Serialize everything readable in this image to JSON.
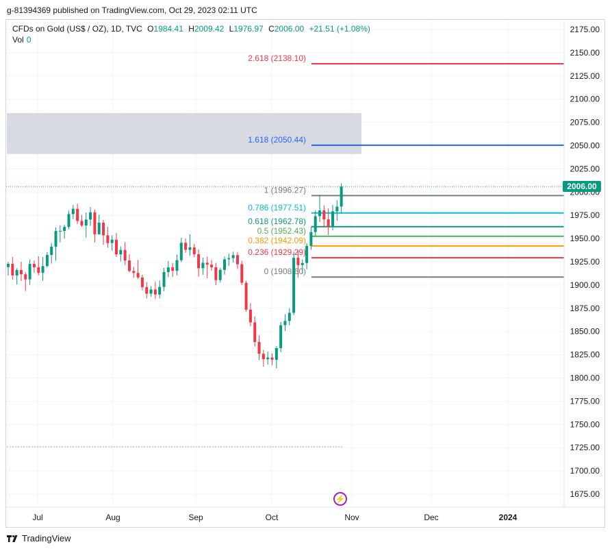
{
  "header": {
    "text": "g-81394369 published on TradingView.com, Oct 29, 2023 02:11 UTC"
  },
  "legend": {
    "symbol": "CFDs on Gold (US$ / OZ), 1D, TVC",
    "o_label": "O",
    "o_value": "1984.41",
    "h_label": "H",
    "h_value": "2009.42",
    "l_label": "L",
    "l_value": "1976.97",
    "c_label": "C",
    "c_value": "2006.00",
    "change": "+21.51 (+1.08%)",
    "vol_label": "Vol",
    "vol_value": "0"
  },
  "footer": {
    "brand": "TradingView"
  },
  "last_price": "2006.00",
  "colors": {
    "up": "#089981",
    "down": "#f23645",
    "grid": "#f0f3fa",
    "zone": "#d1d4dc"
  },
  "chart_data": {
    "type": "candlestick",
    "y_ticks": [
      "1675.00",
      "1700.00",
      "1725.00",
      "1750.00",
      "1775.00",
      "1800.00",
      "1825.00",
      "1850.00",
      "1875.00",
      "1900.00",
      "1925.00",
      "1950.00",
      "1975.00",
      "2000.00",
      "2025.00",
      "2050.00",
      "2075.00",
      "2100.00",
      "2125.00",
      "2150.00",
      "2175.00"
    ],
    "x_ticks": [
      "Jul",
      "Aug",
      "Sep",
      "Oct",
      "Nov",
      "Dec",
      "2024"
    ],
    "ylim": [
      1660,
      2190
    ],
    "fib_levels": [
      {
        "label": "2.618 (2138.10)",
        "value": 2138.1,
        "color": "#f23645"
      },
      {
        "label": "1.618 (2050.44)",
        "value": 2050.44,
        "color": "#2962ff"
      },
      {
        "label": "1 (1996.27)",
        "value": 1996.27,
        "color": "#787b86"
      },
      {
        "label": "0.786 (1977.51)",
        "value": 1977.51,
        "color": "#00bcd4"
      },
      {
        "label": "0.618 (1962.78)",
        "value": 1962.78,
        "color": "#089981"
      },
      {
        "label": "0.5 (1952.43)",
        "value": 1952.43,
        "color": "#4caf50"
      },
      {
        "label": "0.382 (1942.09)",
        "value": 1942.09,
        "color": "#ff9800"
      },
      {
        "label": "0.236 (1929.29)",
        "value": 1929.29,
        "color": "#f23645"
      },
      {
        "label": "0 (1908.60)",
        "value": 1908.6,
        "color": "#787b86"
      }
    ],
    "zone": {
      "top": 2085,
      "bottom": 2041
    },
    "candles": [
      [
        1919.3,
        1925.0,
        1910.1,
        1922.8
      ],
      [
        1922.8,
        1930.2,
        1905.6,
        1910.3
      ],
      [
        1910.3,
        1918.1,
        1900.6,
        1916.1
      ],
      [
        1916.1,
        1925.0,
        1904.2,
        1911.6
      ],
      [
        1911.6,
        1913.8,
        1893.6,
        1906.1
      ],
      [
        1906.1,
        1927.5,
        1900.2,
        1922.7
      ],
      [
        1922.7,
        1926.4,
        1913.1,
        1919.1
      ],
      [
        1919.1,
        1930.9,
        1910.4,
        1913.1
      ],
      [
        1913.1,
        1930.2,
        1904.7,
        1920.4
      ],
      [
        1920.4,
        1935.5,
        1919.1,
        1932.4
      ],
      [
        1932.4,
        1945.2,
        1923.1,
        1941.3
      ],
      [
        1941.3,
        1962.0,
        1926.0,
        1958.1
      ],
      [
        1958.1,
        1964.3,
        1945.9,
        1958.2
      ],
      [
        1958.2,
        1965.0,
        1950.1,
        1962.5
      ],
      [
        1962.5,
        1980.2,
        1960.2,
        1976.3
      ],
      [
        1976.3,
        1986.0,
        1970.8,
        1982.0
      ],
      [
        1982.0,
        1987.4,
        1965.5,
        1969.0
      ],
      [
        1969.0,
        1975.5,
        1962.6,
        1964.1
      ],
      [
        1964.1,
        1978.0,
        1950.9,
        1970.4
      ],
      [
        1970.4,
        1984.1,
        1963.6,
        1978.3
      ],
      [
        1978.3,
        1981.2,
        1945.7,
        1954.6
      ],
      [
        1954.6,
        1975.8,
        1954.1,
        1967.1
      ],
      [
        1967.1,
        1970.0,
        1943.3,
        1953.5
      ],
      [
        1953.5,
        1962.7,
        1940.3,
        1945.2
      ],
      [
        1945.2,
        1953.5,
        1937.0,
        1948.8
      ],
      [
        1948.8,
        1956.0,
        1930.1,
        1933.0
      ],
      [
        1933.0,
        1941.6,
        1925.5,
        1937.7
      ],
      [
        1937.7,
        1946.2,
        1921.6,
        1926.4
      ],
      [
        1926.4,
        1933.0,
        1913.6,
        1915.1
      ],
      [
        1915.1,
        1919.6,
        1907.9,
        1913.0
      ],
      [
        1913.0,
        1927.0,
        1906.3,
        1908.2
      ],
      [
        1908.2,
        1911.0,
        1894.3,
        1897.7
      ],
      [
        1897.7,
        1903.2,
        1885.7,
        1890.7
      ],
      [
        1890.7,
        1898.8,
        1887.3,
        1895.2
      ],
      [
        1895.2,
        1903.4,
        1884.9,
        1889.8
      ],
      [
        1889.8,
        1904.9,
        1885.7,
        1898.0
      ],
      [
        1898.0,
        1918.4,
        1893.4,
        1913.9
      ],
      [
        1913.9,
        1925.8,
        1908.4,
        1919.0
      ],
      [
        1919.0,
        1923.8,
        1908.6,
        1915.3
      ],
      [
        1915.3,
        1932.8,
        1910.5,
        1926.7
      ],
      [
        1926.7,
        1950.8,
        1924.6,
        1945.5
      ],
      [
        1945.5,
        1950.2,
        1934.7,
        1937.9
      ],
      [
        1937.9,
        1954.4,
        1931.7,
        1940.5
      ],
      [
        1940.5,
        1944.3,
        1930.0,
        1933.2
      ],
      [
        1933.2,
        1938.2,
        1909.1,
        1918.1
      ],
      [
        1918.1,
        1929.6,
        1911.0,
        1924.0
      ],
      [
        1924.0,
        1930.6,
        1907.4,
        1921.9
      ],
      [
        1921.9,
        1926.9,
        1915.3,
        1919.1
      ],
      [
        1919.1,
        1923.8,
        1899.9,
        1905.3
      ],
      [
        1905.3,
        1918.5,
        1902.6,
        1916.3
      ],
      [
        1916.3,
        1930.5,
        1911.1,
        1927.7
      ],
      [
        1927.7,
        1933.8,
        1920.7,
        1929.0
      ],
      [
        1929.0,
        1935.8,
        1924.1,
        1932.1
      ],
      [
        1932.1,
        1935.6,
        1917.4,
        1922.4
      ],
      [
        1922.4,
        1926.1,
        1899.8,
        1902.4
      ],
      [
        1902.4,
        1904.6,
        1871.1,
        1873.5
      ],
      [
        1873.5,
        1880.5,
        1855.5,
        1859.8
      ],
      [
        1859.8,
        1866.3,
        1833.9,
        1838.7
      ],
      [
        1838.7,
        1845.7,
        1819.2,
        1826.1
      ],
      [
        1826.1,
        1830.2,
        1812.0,
        1820.2
      ],
      [
        1820.2,
        1828.3,
        1814.4,
        1822.0
      ],
      [
        1822.0,
        1826.4,
        1813.8,
        1819.6
      ],
      [
        1819.6,
        1834.2,
        1810.2,
        1832.1
      ],
      [
        1832.1,
        1860.3,
        1827.9,
        1856.8
      ],
      [
        1856.8,
        1868.7,
        1850.6,
        1861.4
      ],
      [
        1861.4,
        1874.9,
        1856.6,
        1870.1
      ],
      [
        1870.1,
        1935.7,
        1867.6,
        1929.3
      ],
      [
        1929.3,
        1937.0,
        1908.1,
        1921.4
      ],
      [
        1921.4,
        1927.5,
        1912.1,
        1923.7
      ],
      [
        1923.7,
        1945.2,
        1916.9,
        1942.1
      ],
      [
        1942.1,
        1962.7,
        1937.8,
        1957.0
      ],
      [
        1957.0,
        1980.2,
        1952.7,
        1974.1
      ],
      [
        1974.1,
        1997.2,
        1967.8,
        1980.3
      ],
      [
        1980.3,
        1985.8,
        1962.1,
        1970.6
      ],
      [
        1970.6,
        1982.4,
        1953.8,
        1962.6
      ],
      [
        1962.6,
        1986.1,
        1958.7,
        1979.3
      ],
      [
        1979.3,
        1991.3,
        1969.1,
        1984.4
      ],
      [
        1984.4,
        2009.4,
        1977.0,
        2006.0
      ]
    ]
  }
}
